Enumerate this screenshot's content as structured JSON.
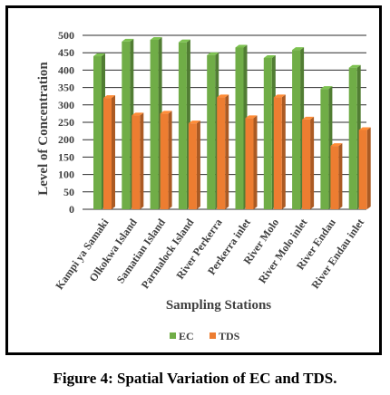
{
  "caption": "Figure 4: Spatial Variation of EC and TDS.",
  "chart_data": {
    "type": "bar",
    "style": "3d-clustered-column",
    "title": "",
    "xlabel": "Sampling Stations",
    "ylabel": "Level of Concentration",
    "ylim": [
      0,
      500
    ],
    "yticks": [
      0,
      50,
      100,
      150,
      200,
      250,
      300,
      350,
      400,
      450,
      500
    ],
    "grid": true,
    "legend_position": "bottom",
    "categories": [
      "Kampi ya Samaki",
      "Olkokwa Island",
      "Samatian Island",
      "Parmalock Island",
      "River Perkerra",
      "Perkerra inlet",
      "River Molo",
      "River Molo inlet",
      "River Endau",
      "River Endau inlet"
    ],
    "series": [
      {
        "name": "EC",
        "color": "#70ad47",
        "values": [
          440,
          482,
          487,
          480,
          443,
          465,
          435,
          458,
          346,
          407
        ]
      },
      {
        "name": "TDS",
        "color": "#ed7d31",
        "values": [
          320,
          270,
          275,
          247,
          322,
          262,
          322,
          258,
          182,
          228
        ]
      }
    ]
  }
}
